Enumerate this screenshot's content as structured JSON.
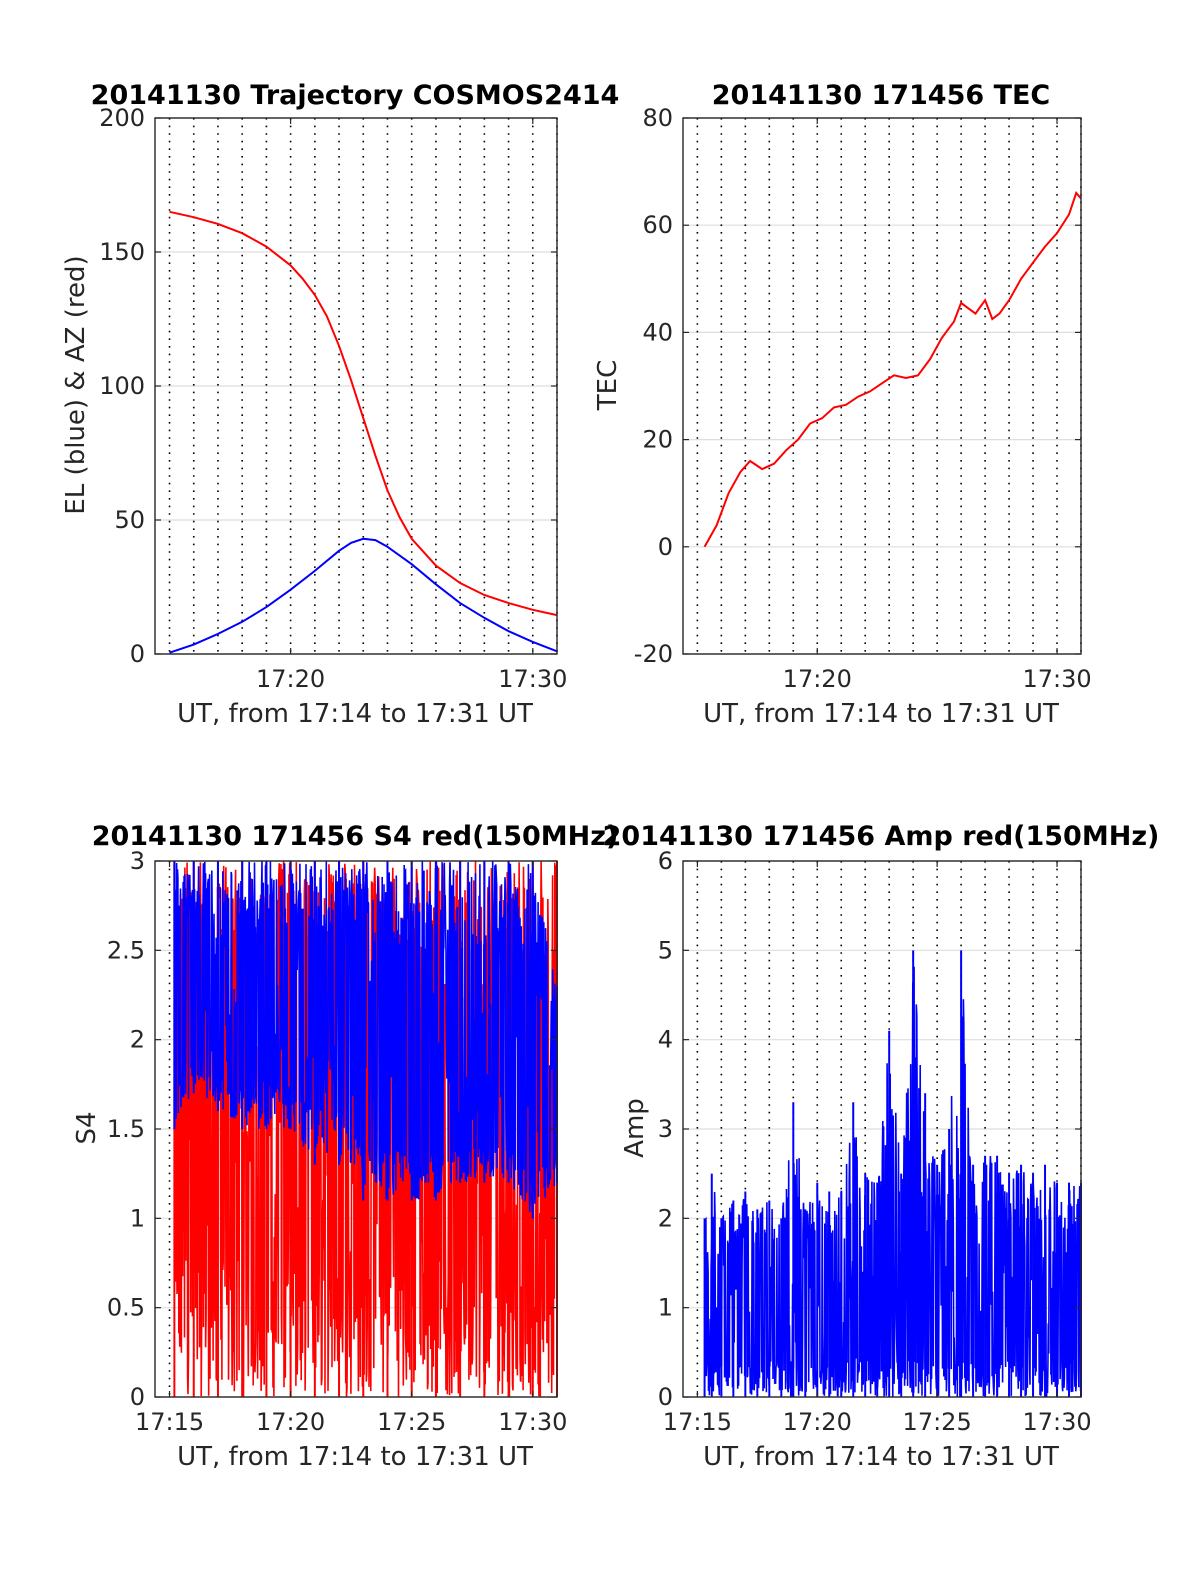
{
  "chart_data": [
    {
      "type": "line",
      "title": "20141130 Trajectory COSMOS2414",
      "xlabel": "UT, from 17:14 to 17:31 UT",
      "ylabel": "EL (blue) & AZ (red)",
      "x_unit": "minutes after 17:00 UT",
      "xlim": [
        14.4,
        31.0
      ],
      "ylim": [
        0,
        200
      ],
      "xticks": [
        20,
        30
      ],
      "xtick_labels": [
        "17:20",
        "17:30"
      ],
      "yticks": [
        0,
        50,
        100,
        150,
        200
      ],
      "ytick_labels": [
        "0",
        "50",
        "100",
        "150",
        "200"
      ],
      "grid": true,
      "series": [
        {
          "color": "#ff0000",
          "x": [
            15.0,
            16.0,
            17.0,
            18.0,
            19.0,
            20.0,
            20.5,
            21.0,
            21.5,
            22.0,
            22.5,
            23.0,
            23.5,
            24.0,
            24.5,
            25.0,
            26.0,
            27.0,
            28.0,
            29.0,
            30.0,
            31.0
          ],
          "values": [
            165,
            163,
            160.5,
            157,
            152,
            145,
            140,
            134,
            126,
            115,
            102,
            88,
            74,
            61,
            51,
            43,
            33,
            26.5,
            22,
            19,
            16.5,
            14.5
          ]
        },
        {
          "color": "#0000ff",
          "x": [
            15.0,
            16.0,
            17.0,
            18.0,
            19.0,
            20.0,
            21.0,
            22.0,
            22.5,
            23.0,
            23.5,
            24.0,
            25.0,
            26.0,
            27.0,
            28.0,
            29.0,
            30.0,
            31.0
          ],
          "values": [
            0.5,
            3.5,
            7.5,
            12,
            17.5,
            24,
            31,
            38.5,
            41.5,
            43,
            42.5,
            40,
            33.5,
            26,
            19,
            13.5,
            8.5,
            4.5,
            1
          ]
        }
      ]
    },
    {
      "type": "line",
      "title": "20141130 171456 TEC",
      "xlabel": "UT, from 17:14 to 17:31 UT",
      "ylabel": "TEC",
      "x_unit": "minutes after 17:00 UT",
      "xlim": [
        14.4,
        31.0
      ],
      "ylim": [
        -20,
        80
      ],
      "xticks": [
        20,
        30
      ],
      "xtick_labels": [
        "17:20",
        "17:30"
      ],
      "yticks": [
        -20,
        0,
        20,
        40,
        60,
        80
      ],
      "ytick_labels": [
        "-20",
        "0",
        "20",
        "40",
        "60",
        "80"
      ],
      "grid": true,
      "series": [
        {
          "color": "#ff0000",
          "x": [
            15.3,
            15.8,
            16.3,
            16.8,
            17.2,
            17.7,
            18.2,
            18.7,
            19.2,
            19.7,
            20.2,
            20.7,
            21.2,
            21.7,
            22.2,
            22.7,
            23.2,
            23.7,
            24.2,
            24.7,
            25.2,
            25.7,
            26.0,
            26.3,
            26.6,
            27.0,
            27.3,
            27.6,
            28.0,
            28.5,
            29.0,
            29.5,
            30.0,
            30.5,
            30.8,
            31.0
          ],
          "values": [
            0,
            4,
            10,
            14,
            16,
            14.5,
            15.5,
            18,
            20,
            23,
            24,
            26,
            26.5,
            28,
            29,
            30.5,
            32,
            31.5,
            32,
            35,
            39,
            42,
            45.5,
            44.5,
            43.5,
            46,
            42.5,
            43.5,
            46,
            50,
            53,
            56,
            58.5,
            62,
            66,
            65
          ]
        }
      ]
    },
    {
      "type": "line",
      "title": "20141130 171456 S4 red(150MHz)",
      "xlabel": "UT, from 17:14 to 17:31 UT",
      "ylabel": "S4",
      "x_unit": "minutes after 17:00 UT",
      "xlim": [
        14.4,
        31.0
      ],
      "ylim": [
        0,
        3
      ],
      "xticks": [
        15,
        20,
        25,
        30
      ],
      "xtick_labels": [
        "17:15",
        "17:20",
        "17:25",
        "17:30"
      ],
      "yticks": [
        0,
        0.5,
        1,
        1.5,
        2,
        2.5,
        3
      ],
      "ytick_labels": [
        "0",
        "0.5",
        "1",
        "1.5",
        "2",
        "2.5",
        "3"
      ],
      "grid": true,
      "series": [
        {
          "color": "#ff0000",
          "x": [
            15.2,
            16.0,
            17.0,
            18.0,
            19.0,
            20.0,
            21.0,
            22.0,
            23.0,
            24.0,
            25.0,
            26.0,
            27.0,
            28.0,
            29.0,
            30.0,
            31.0
          ],
          "values": [
            1.8,
            2.2,
            2.0,
            1.9,
            1.9,
            2.0,
            2.0,
            1.8,
            1.9,
            1.8,
            1.7,
            1.6,
            1.6,
            1.6,
            1.6,
            1.6,
            1.6
          ],
          "min": [
            0,
            0,
            0,
            0,
            0,
            0,
            0,
            0,
            0,
            0,
            0,
            0,
            0,
            0,
            0,
            0,
            0
          ],
          "max": [
            3,
            3,
            3,
            3,
            3,
            3,
            3,
            3,
            3,
            3,
            3,
            3,
            3,
            3,
            3,
            3,
            3
          ]
        },
        {
          "color": "#0000ff",
          "x": [
            15.2,
            16.0,
            17.0,
            18.0,
            19.0,
            20.0,
            21.0,
            22.0,
            23.0,
            24.0,
            25.0,
            26.0,
            27.0,
            28.0,
            29.0,
            30.0,
            31.0
          ],
          "values": [
            2.3,
            2.3,
            2.2,
            2.1,
            2.2,
            2.2,
            2.1,
            2.0,
            1.9,
            1.8,
            1.8,
            1.7,
            1.7,
            1.7,
            1.7,
            1.6,
            1.6
          ],
          "min": [
            1.5,
            1.7,
            1.6,
            1.5,
            1.5,
            1.5,
            1.3,
            1.3,
            1.1,
            1.1,
            1.1,
            1.1,
            1.2,
            1.2,
            1.2,
            1.0,
            1.2
          ],
          "max": [
            3,
            3,
            3,
            3,
            3,
            3,
            3,
            3,
            3,
            3,
            3,
            3,
            3,
            3,
            3,
            3,
            2.3
          ]
        }
      ]
    },
    {
      "type": "line",
      "title": "20141130 171456 Amp red(150MHz)",
      "xlabel": "UT, from 17:14 to 17:31 UT",
      "ylabel": "Amp",
      "x_unit": "minutes after 17:00 UT",
      "xlim": [
        14.4,
        31.0
      ],
      "ylim": [
        0,
        6
      ],
      "xticks": [
        15,
        20,
        25,
        30
      ],
      "xtick_labels": [
        "17:15",
        "17:20",
        "17:25",
        "17:30"
      ],
      "yticks": [
        0,
        1,
        2,
        3,
        4,
        5,
        6
      ],
      "ytick_labels": [
        "0",
        "1",
        "2",
        "3",
        "4",
        "5",
        "6"
      ],
      "grid": true,
      "series": [
        {
          "color": "#0000ff",
          "x": [
            15.3,
            15.6,
            16.0,
            16.5,
            17.0,
            17.5,
            18.0,
            18.5,
            19.0,
            19.5,
            20.0,
            20.5,
            21.0,
            21.5,
            22.0,
            22.5,
            23.0,
            23.5,
            24.0,
            24.5,
            25.0,
            25.5,
            26.0,
            26.5,
            27.0,
            27.5,
            28.0,
            28.5,
            29.0,
            29.5,
            30.0,
            30.5,
            31.0
          ],
          "values": [
            1.0,
            1.0,
            1.0,
            1.0,
            1.0,
            1.0,
            1.0,
            1.0,
            1.0,
            1.0,
            1.0,
            1.0,
            1.0,
            1.0,
            1.1,
            1.1,
            1.1,
            1.1,
            1.1,
            1.1,
            1.1,
            1.1,
            1.2,
            1.1,
            1.1,
            1.1,
            1.1,
            1.1,
            1.1,
            1.1,
            1.1,
            1.1,
            1.1
          ],
          "min": [
            0,
            0,
            0,
            0,
            0,
            0,
            0,
            0,
            0,
            0,
            0,
            0,
            0,
            0,
            0,
            0,
            0,
            0,
            0,
            0,
            0,
            0,
            0,
            0,
            0,
            0,
            0,
            0,
            0,
            0,
            0,
            0,
            0
          ],
          "max": [
            2.0,
            2.5,
            2.0,
            2.2,
            2.3,
            2.1,
            2.2,
            2.0,
            3.3,
            2.1,
            2.4,
            2.3,
            2.3,
            3.3,
            2.5,
            2.4,
            4.1,
            2.5,
            5.0,
            3.4,
            2.6,
            3.0,
            5.0,
            2.6,
            2.7,
            2.7,
            2.5,
            2.6,
            2.5,
            2.6,
            2.4,
            2.4,
            2.4
          ]
        }
      ]
    }
  ]
}
